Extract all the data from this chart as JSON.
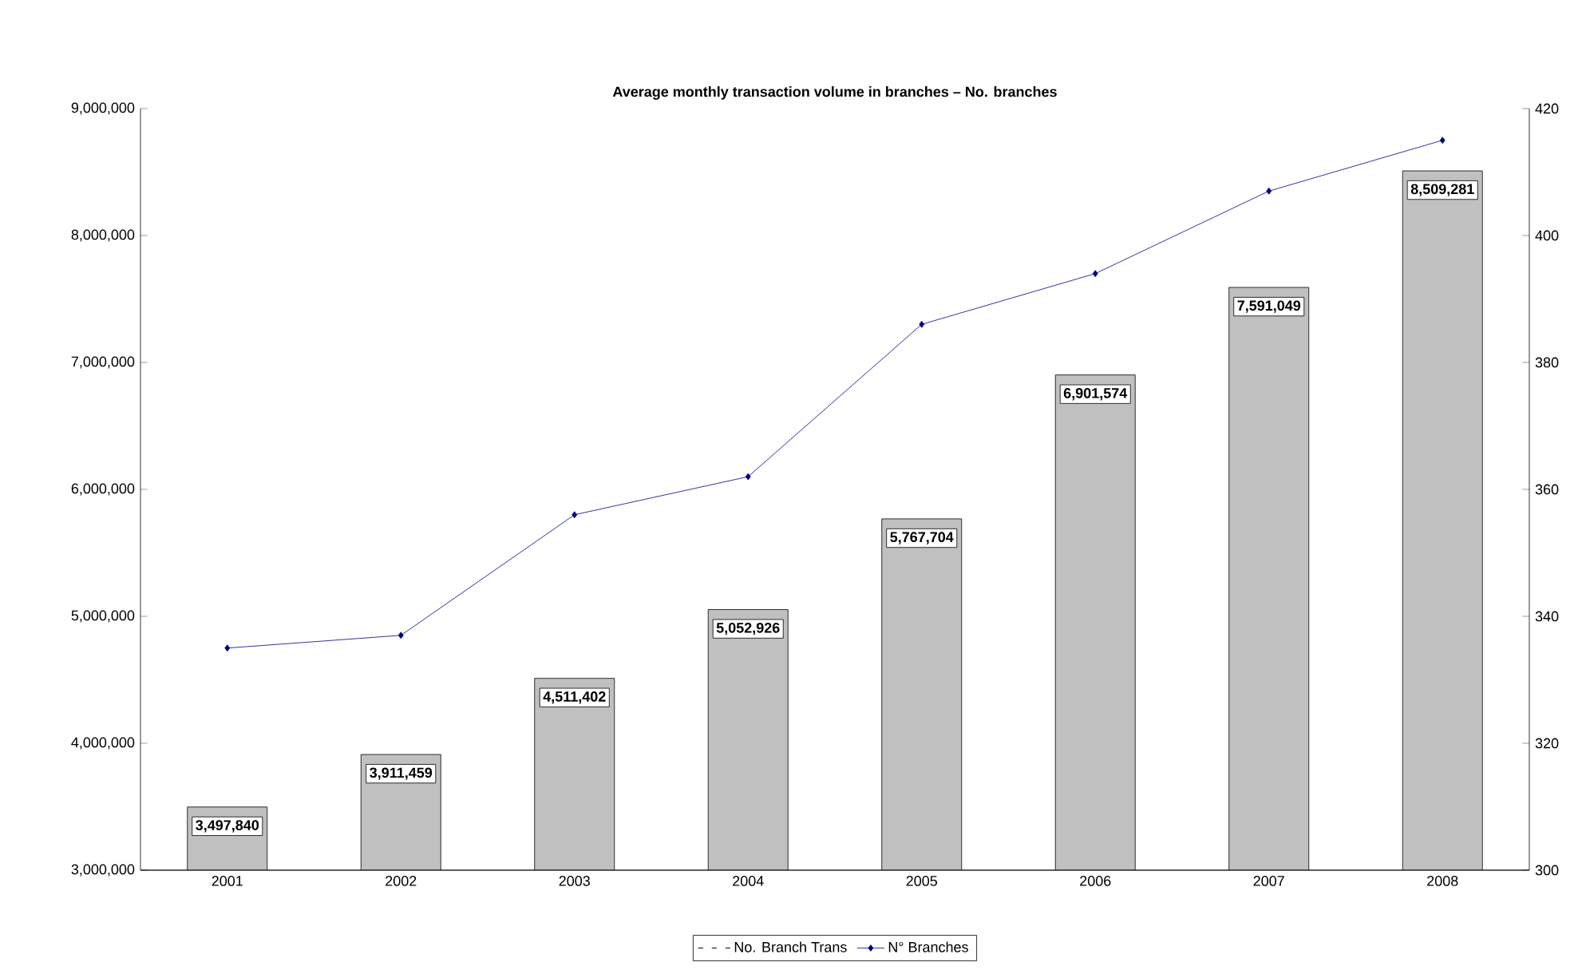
{
  "chart_data": {
    "type": "bar",
    "title": "Average monthly transaction volume in branches – No. branches",
    "categories": [
      "2001",
      "2002",
      "2003",
      "2004",
      "2005",
      "2006",
      "2007",
      "2008"
    ],
    "series": [
      {
        "name": "No. Branch Trans",
        "color": "#c0c0c0",
        "values": [
          3497840,
          3911459,
          4511402,
          5052926,
          5767704,
          6901574,
          7591049,
          8509281
        ],
        "value_labels": [
          "3,497,840",
          "3,911,459",
          "4,511,402",
          "5,052,926",
          "5,767,704",
          "6,901,574",
          "7,591,049",
          "8,509,281"
        ]
      },
      {
        "name": "N° Branches",
        "type": "line",
        "axis": "y2",
        "color": "#000080",
        "marker": "diamond",
        "values": [
          335,
          337,
          356,
          362,
          386,
          394,
          407,
          415
        ]
      }
    ],
    "ylim": [
      3000000,
      9000000
    ],
    "yticks": [
      {
        "value": 3000000,
        "label": "3,000,000"
      },
      {
        "value": 4000000,
        "label": "4,000,000"
      },
      {
        "value": 5000000,
        "label": "5,000,000"
      },
      {
        "value": 6000000,
        "label": "6,000,000"
      },
      {
        "value": 7000000,
        "label": "7,000,000"
      },
      {
        "value": 8000000,
        "label": "8,000,000"
      },
      {
        "value": 9000000,
        "label": "9,000,000"
      }
    ],
    "y2lim": [
      300,
      420
    ],
    "y2ticks": [
      300,
      320,
      340,
      360,
      380,
      400,
      420
    ],
    "legend": "bottom",
    "grid": false
  }
}
